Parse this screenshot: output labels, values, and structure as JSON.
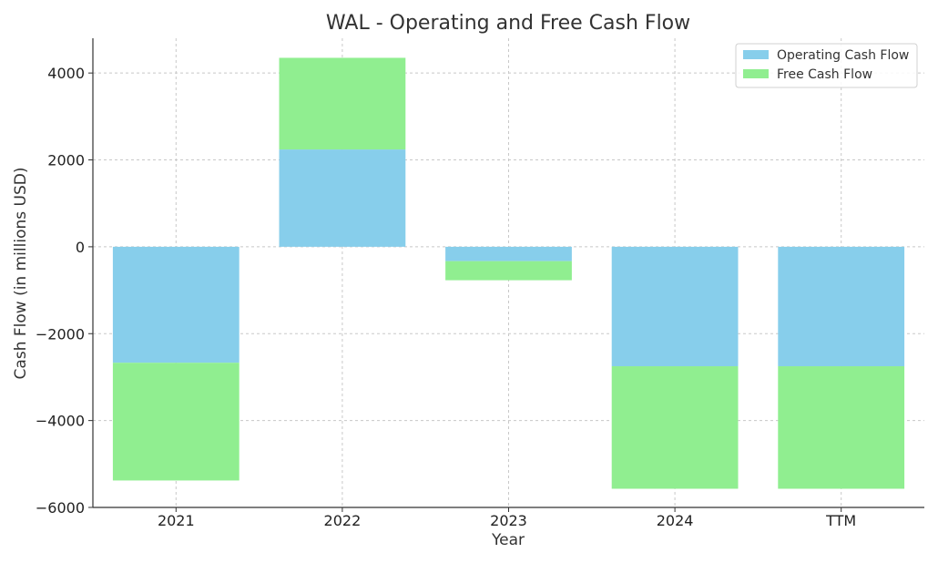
{
  "chart_data": {
    "type": "bar",
    "stacked": true,
    "title": "WAL - Operating and Free Cash Flow",
    "xlabel": "Year",
    "ylabel": "Cash Flow (in millions USD)",
    "categories": [
      "2021",
      "2022",
      "2023",
      "2024",
      "TTM"
    ],
    "series": [
      {
        "name": "Operating Cash Flow",
        "color": "#87CEEB",
        "values": [
          -2670,
          2240,
          -330,
          -2750,
          -2750
        ]
      },
      {
        "name": "Free Cash Flow",
        "color": "#90EE90",
        "values": [
          -2710,
          2110,
          -440,
          -2820,
          -2820
        ]
      }
    ],
    "ylim": [
      -6000,
      4800
    ],
    "yticks": [
      4000,
      2000,
      0,
      -2000,
      -4000,
      -6000
    ],
    "ytick_labels": [
      "4000",
      "2000",
      "0",
      "−2000",
      "−4000",
      "−6000"
    ],
    "grid": true,
    "legend_position": "top-right"
  }
}
